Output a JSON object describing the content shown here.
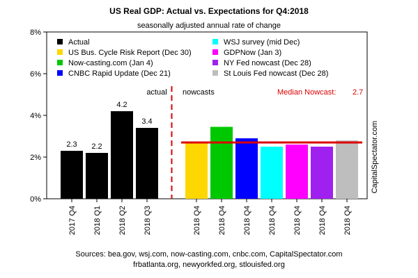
{
  "chart_data": {
    "type": "bar",
    "title": "US Real GDP: Actual vs. Expectations for Q4:2018",
    "subtitle": "seasonally adjusted annual rate of change",
    "ylim": [
      0,
      8
    ],
    "y_ticks": [
      "0%",
      "2%",
      "4%",
      "6%",
      "8%"
    ],
    "grid": false,
    "categories": [
      "2017 Q4",
      "2018 Q1",
      "2018 Q2",
      "2018 Q3",
      "2018 Q4",
      "2018 Q4",
      "2018 Q4",
      "2018 Q4",
      "2018 Q4",
      "2018 Q4",
      "2018 Q4"
    ],
    "values": [
      2.3,
      2.2,
      4.2,
      3.4,
      2.7,
      3.45,
      2.9,
      2.5,
      2.6,
      2.5,
      2.8
    ],
    "colors": [
      "#000000",
      "#000000",
      "#000000",
      "#000000",
      "#ffd700",
      "#00c800",
      "#0000ff",
      "#00ffff",
      "#ff00ff",
      "#a020f0",
      "#bebebe"
    ],
    "value_labels": [
      "2.3",
      "2.2",
      "4.2",
      "3.4",
      "",
      "",
      "",
      "",
      "",
      "",
      ""
    ],
    "legend_placement": "top",
    "legend": [
      {
        "label": "Actual",
        "color": "#000000"
      },
      {
        "label": "US Bus. Cycle Risk Report (Dec 30)",
        "color": "#ffd700"
      },
      {
        "label": "Now-casting.com (Jan 4)",
        "color": "#00c800"
      },
      {
        "label": "CNBC Rapid Update (Dec 21)",
        "color": "#0000ff"
      },
      {
        "label": "WSJ survey (mid Dec)",
        "color": "#00ffff"
      },
      {
        "label": "GDPNow (Jan 3)",
        "color": "#ff00ff"
      },
      {
        "label": "NY Fed nowcast (Dec 28)",
        "color": "#a020f0"
      },
      {
        "label": "St Louis Fed nowcast (Dec 28)",
        "color": "#bebebe"
      }
    ],
    "section_labels": {
      "actual": "actual",
      "nowcasts": "nowcasts"
    },
    "median": {
      "label": "Median Nowcast:",
      "value_text": "2.7",
      "value": 2.7,
      "color": "#dd0000"
    },
    "divider_color": "#dd0000",
    "watermark": "CapitalSpectator.com",
    "sources": [
      "Sources: bea.gov, wsj.com, now-casting.com, cnbc.com, CapitalSpectator.com",
      "frbatlanta.org, newyorkfed.org, stlouisfed.org"
    ]
  }
}
